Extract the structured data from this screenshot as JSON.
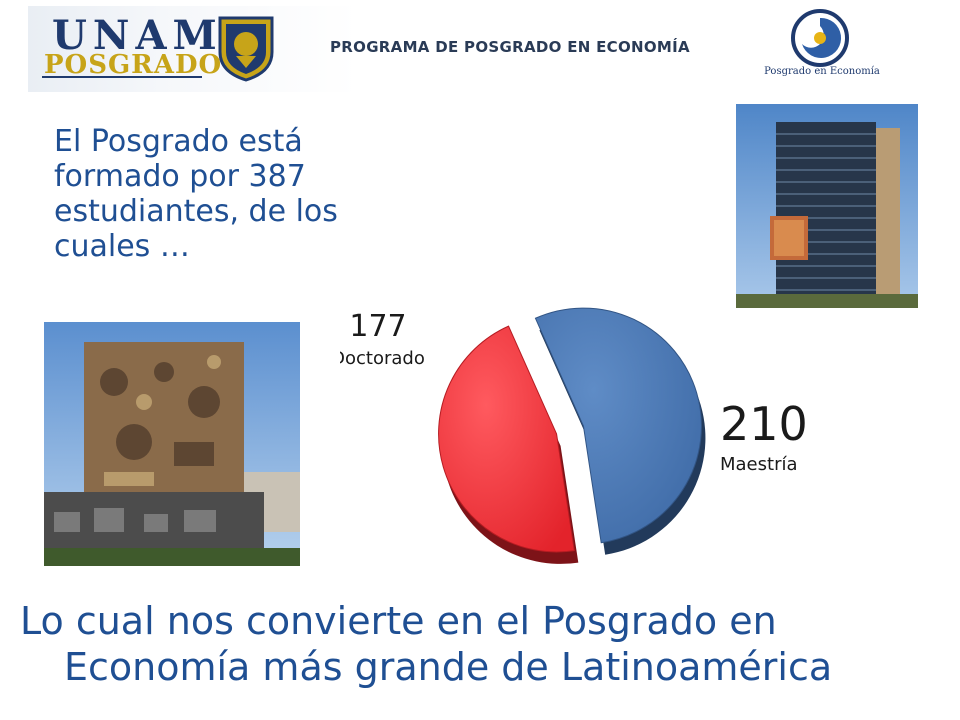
{
  "header": {
    "logo_unam": "UNAM",
    "logo_posgrado": "POSGRADO",
    "program_title": "PROGRAMA DE POSGRADO EN ECONOMÍA",
    "right_logo_caption": "Posgrado en Economía"
  },
  "intro_text": "El Posgrado está formado por  387 estudiantes, de los cuales …",
  "chart_data": {
    "type": "pie",
    "slices": [
      {
        "label": "Doctorado",
        "value": 177,
        "color": "#e3232b"
      },
      {
        "label": "Maestría",
        "value": 210,
        "color": "#3e6aa6"
      }
    ],
    "exploded": true,
    "title": ""
  },
  "conclusion": {
    "line1": "Lo cual nos convierte en el Posgrado en",
    "line2": "Economía más grande de Latinoamérica"
  },
  "colors": {
    "text_blue": "#1f4f93",
    "doctorado_red": "#e3232b",
    "maestria_blue": "#3e6aa6"
  },
  "images": {
    "building_photo": "rectory-tower-photo",
    "library_photo": "central-library-mural-photo"
  }
}
